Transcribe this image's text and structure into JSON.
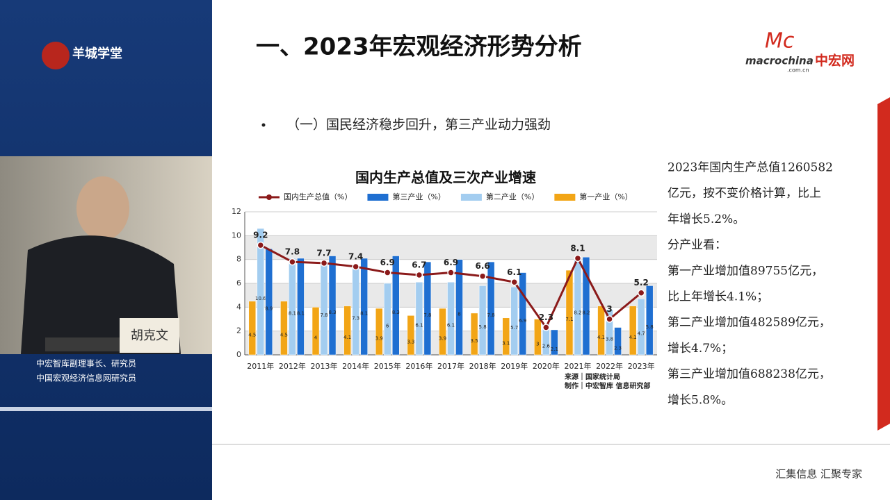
{
  "sidebar": {
    "logo": "羊城学堂",
    "speaker_name": "胡克文",
    "caption": [
      "中宏智库副理事长、研究员",
      "中国宏观经济信息网研究员"
    ]
  },
  "slide": {
    "title": "一、2023年宏观经济形势分析",
    "brand_mark": "Mc",
    "brand": "macrochina",
    "brand_domain": ".com.cn",
    "brand_cn": "中宏网",
    "bullet": "（一）国民经济稳步回升，第三产业动力强劲",
    "text": [
      "2023年国内生产总值1260582",
      "亿元，按不变价格计算，比上",
      "年增长5.2%。",
      "分产业看：",
      "第一产业增加值89755亿元，",
      "比上年增长4.1%；",
      "第二产业增加值482589亿元，",
      "增长4.7%；",
      "第三产业增加值688238亿元，",
      "增长5.8%。"
    ],
    "footer": "汇集信息  汇聚专家"
  },
  "chart_data": {
    "type": "bar",
    "title": "国内生产总值及三次产业增速",
    "categories": [
      "2011年",
      "2012年",
      "2013年",
      "2014年",
      "2015年",
      "2016年",
      "2017年",
      "2018年",
      "2019年",
      "2020年",
      "2021年",
      "2022年",
      "2023年"
    ],
    "series": [
      {
        "name": "国内生产总值（%）",
        "type": "line",
        "color": "#8b1a1a",
        "values": [
          9.2,
          7.8,
          7.7,
          7.4,
          6.9,
          6.7,
          6.9,
          6.6,
          6.1,
          2.3,
          8.1,
          3,
          5.2
        ]
      },
      {
        "name": "第三产业（%）",
        "color": "#1f6fd1",
        "values": [
          8.9,
          8.1,
          8.3,
          8.1,
          8.3,
          7.8,
          8,
          7.8,
          6.9,
          2.1,
          8.2,
          2.3,
          5.8
        ]
      },
      {
        "name": "第二产业（%）",
        "color": "#a3cdf0",
        "values": [
          10.6,
          8.1,
          7.8,
          7.3,
          6,
          6.1,
          6.1,
          5.8,
          5.7,
          2.6,
          8.2,
          3.8,
          4.7
        ]
      },
      {
        "name": "第一产业（%）",
        "color": "#f2a516",
        "values": [
          4.5,
          4.5,
          4,
          4.1,
          3.9,
          3.3,
          3.9,
          3.5,
          3.1,
          3,
          7.1,
          4.1,
          4.1
        ]
      }
    ],
    "ylim": [
      0,
      12
    ],
    "yticks": [
      0,
      2,
      4,
      6,
      8,
      10,
      12
    ],
    "grid": true,
    "source": [
      "来源｜国家统计局",
      "制作｜中宏智库 信息研究部"
    ]
  }
}
